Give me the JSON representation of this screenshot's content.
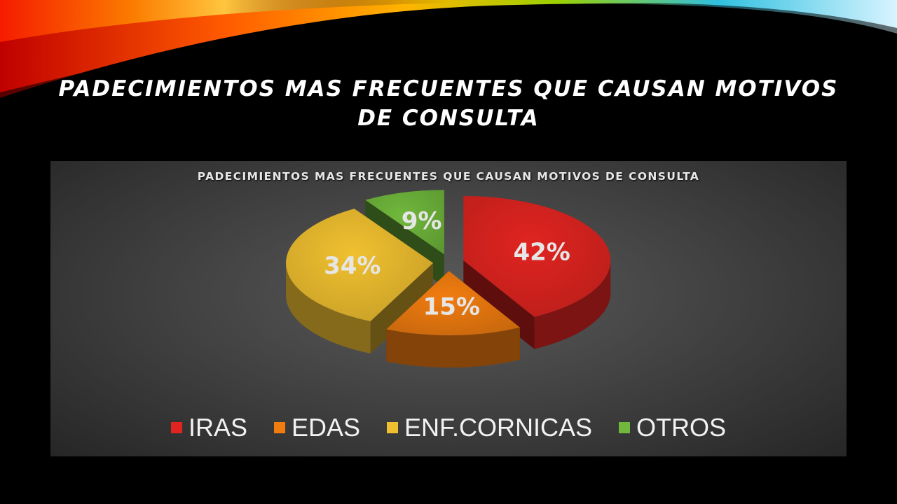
{
  "slide": {
    "title": "PADECIMIENTOS MAS FRECUENTES QUE CAUSAN MOTIVOS DE CONSULTA"
  },
  "chart_data": {
    "type": "pie",
    "title": "PADECIMIENTOS MAS FRECUENTES QUE CAUSAN MOTIVOS DE CONSULTA",
    "categories": [
      "IRAS",
      "EDAS",
      "ENF.CORNICAS",
      "OTROS"
    ],
    "values": [
      42,
      15,
      34,
      9
    ],
    "value_labels": [
      "42%",
      "15%",
      "34%",
      "9%"
    ],
    "colors": [
      "#e02420",
      "#f07c10",
      "#f0c030",
      "#70b83c"
    ],
    "legend_position": "bottom",
    "style": "3d-exploded"
  }
}
